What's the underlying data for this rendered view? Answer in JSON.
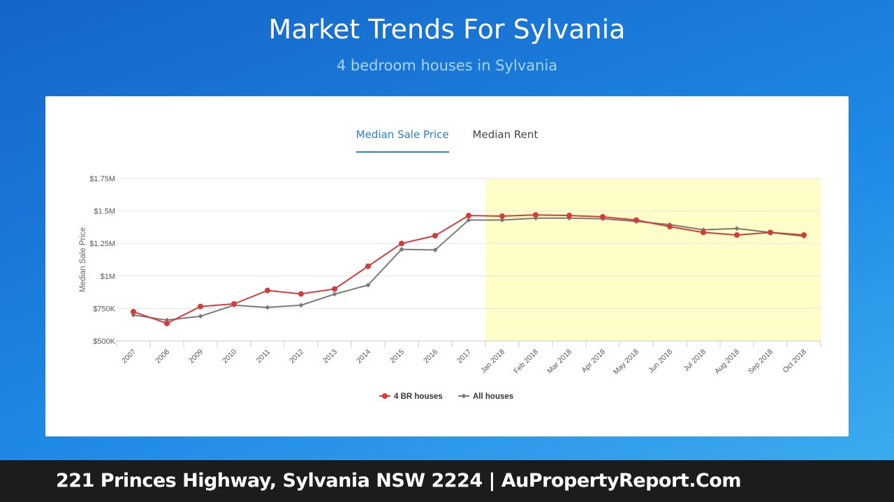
{
  "page": {
    "title": "Market Trends For Sylvania",
    "subtitle": "4 bedroom houses in Sylvania"
  },
  "tabs": [
    {
      "label": "Median Sale Price",
      "active": true
    },
    {
      "label": "Median Rent",
      "active": false
    }
  ],
  "colors": {
    "series_4br": "#d63b3b",
    "series_all": "#7a7a7a",
    "highlight": "#fffec8",
    "tab_active": "#2a7fd0"
  },
  "chart_data": {
    "type": "line",
    "ylabel": "Median Sale Price",
    "xlabel": "",
    "ylim": [
      500000,
      1750000
    ],
    "y_ticks": [
      {
        "value": 500000,
        "label": "$500K"
      },
      {
        "value": 750000,
        "label": "$750K"
      },
      {
        "value": 1000000,
        "label": "$1M"
      },
      {
        "value": 1250000,
        "label": "$1.25M"
      },
      {
        "value": 1500000,
        "label": "$1.5M"
      },
      {
        "value": 1750000,
        "label": "$1.75M"
      }
    ],
    "categories": [
      "2007",
      "2008",
      "2009",
      "2010",
      "2011",
      "2012",
      "2013",
      "2014",
      "2015",
      "2016",
      "2017",
      "Jan 2018",
      "Feb 2018",
      "Mar 2018",
      "Apr 2018",
      "May 2018",
      "Jun 2018",
      "Jul 2018",
      "Aug 2018",
      "Sep 2018",
      "Oct 2018"
    ],
    "highlight_range": [
      "Jan 2018",
      "Oct 2018"
    ],
    "grid": true,
    "legend_position": "bottom-center",
    "series": [
      {
        "name": "4 BR houses",
        "marker": "circle",
        "values": [
          725000,
          635000,
          765000,
          785000,
          888000,
          862000,
          900000,
          1075000,
          1250000,
          1310000,
          1465000,
          1460000,
          1470000,
          1465000,
          1455000,
          1430000,
          1380000,
          1335000,
          1315000,
          1335000,
          1315000
        ]
      },
      {
        "name": "All houses",
        "marker": "diamond",
        "values": [
          700000,
          660000,
          690000,
          775000,
          758000,
          775000,
          860000,
          930000,
          1205000,
          1200000,
          1430000,
          1430000,
          1445000,
          1445000,
          1440000,
          1420000,
          1395000,
          1355000,
          1365000,
          1335000,
          1305000
        ]
      }
    ]
  },
  "footer": {
    "text": "221 Princes Highway, Sylvania NSW 2224 | AuPropertyReport.Com"
  }
}
